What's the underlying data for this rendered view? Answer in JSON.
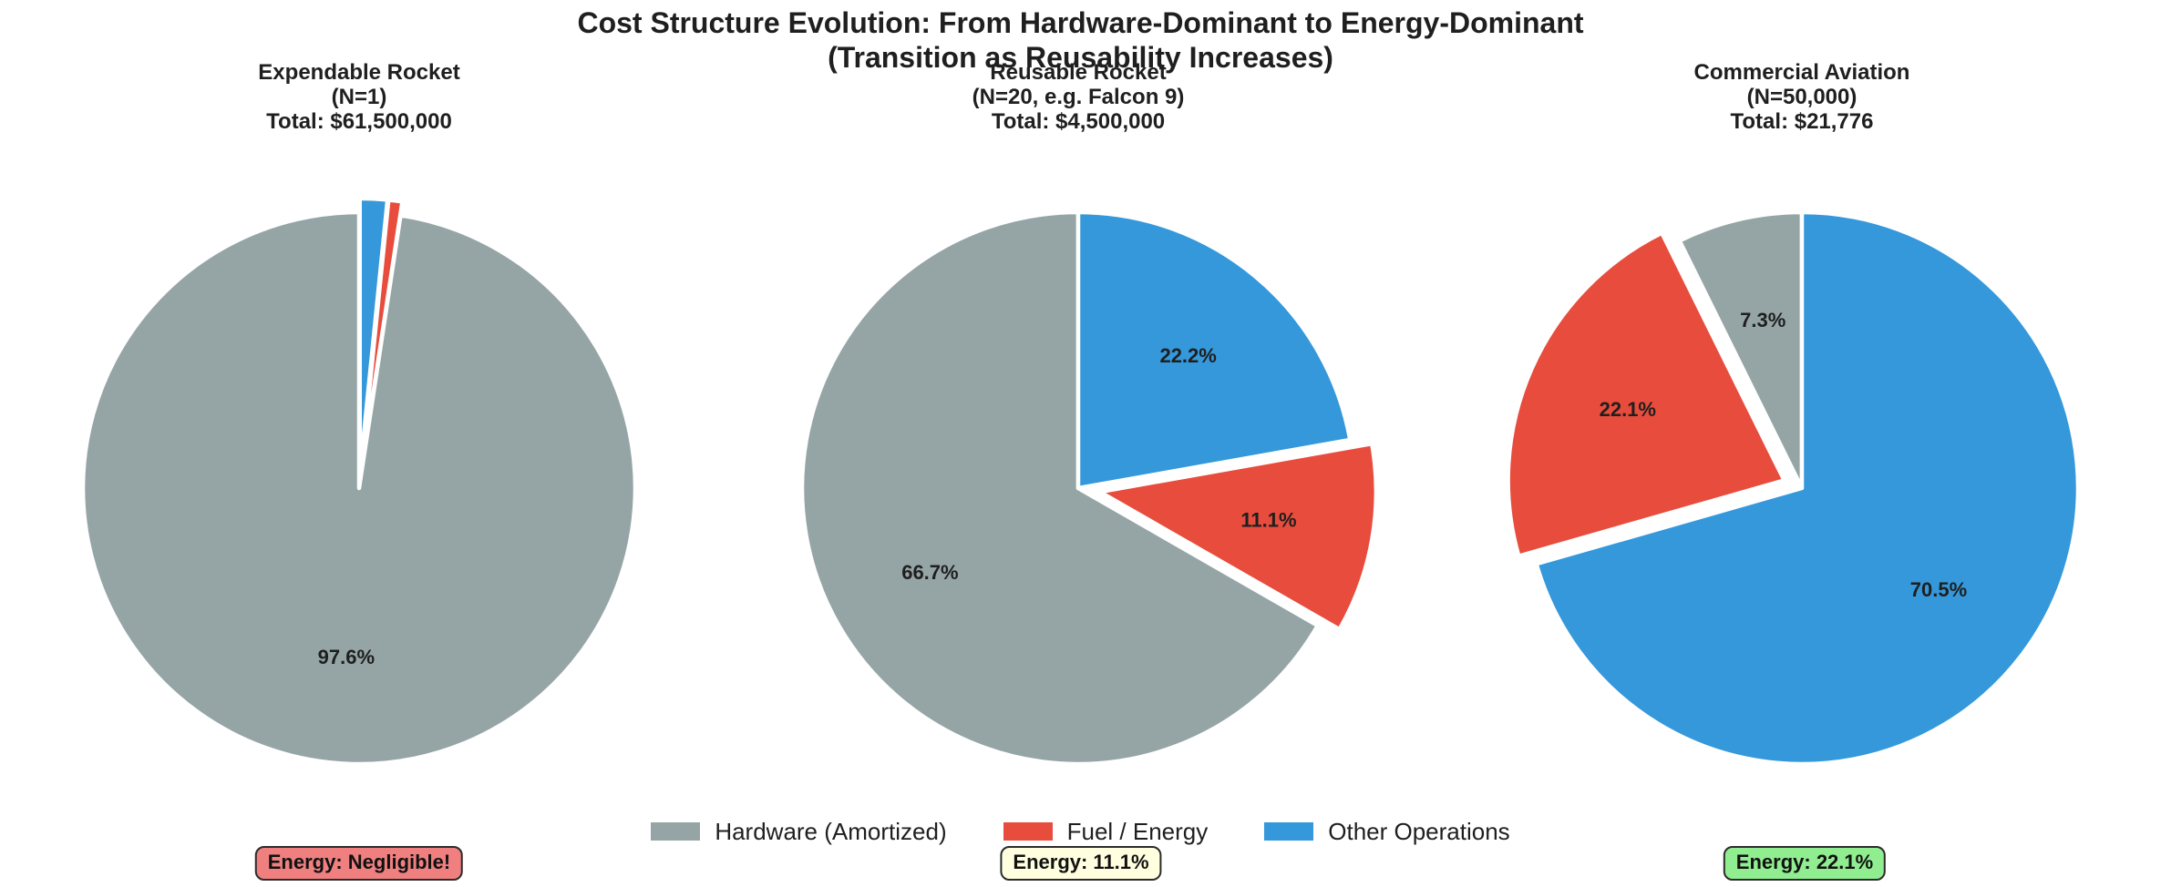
{
  "figure": {
    "title_line1": "Cost Structure Evolution: From Hardware-Dominant to Energy-Dominant",
    "title_line2": "(Transition as Reusability Increases)"
  },
  "colors": {
    "hardware": "#95A5A6",
    "fuel": "#E74C3C",
    "other": "#3498DB",
    "wedge_edge": "#FFFFFF",
    "text": "#1F1F1F",
    "annotation_border": "#2B2B2B"
  },
  "legend": {
    "items": [
      {
        "label": "Hardware (Amortized)",
        "color_key": "hardware"
      },
      {
        "label": "Fuel / Energy",
        "color_key": "fuel"
      },
      {
        "label": "Other Operations",
        "color_key": "other"
      }
    ]
  },
  "chart_data": [
    {
      "type": "pie",
      "title_lines": [
        "Expendable Rocket",
        "(N=1)",
        "Total: $61,500,000"
      ],
      "categories": [
        "Hardware (Amortized)",
        "Fuel / Energy",
        "Other Operations"
      ],
      "color_keys": [
        "hardware",
        "fuel",
        "other"
      ],
      "values_pct": [
        97.6,
        0.8,
        1.6
      ],
      "slice_labels": [
        "97.6%",
        null,
        null
      ],
      "explode": [
        0,
        0.05,
        0.05
      ],
      "start_angle": 90,
      "direction": "counterclockwise",
      "annotation": {
        "label": "Energy: Negligible!",
        "bg": "#F08080"
      }
    },
    {
      "type": "pie",
      "title_lines": [
        "Reusable Rocket",
        "(N=20, e.g. Falcon 9)",
        "Total: $4,500,000"
      ],
      "categories": [
        "Hardware (Amortized)",
        "Fuel / Energy",
        "Other Operations"
      ],
      "color_keys": [
        "hardware",
        "fuel",
        "other"
      ],
      "values_pct": [
        66.7,
        11.1,
        22.2
      ],
      "slice_labels": [
        "66.7%",
        "11.1%",
        "22.2%"
      ],
      "explode": [
        0,
        0.08,
        0
      ],
      "start_angle": 90,
      "direction": "counterclockwise",
      "annotation": {
        "label": "Energy: 11.1%",
        "bg": "#FFFFE0"
      }
    },
    {
      "type": "pie",
      "title_lines": [
        "Commercial Aviation",
        "(N=50,000)",
        "Total: $21,776"
      ],
      "categories": [
        "Hardware (Amortized)",
        "Fuel / Energy",
        "Other Operations"
      ],
      "color_keys": [
        "hardware",
        "fuel",
        "other"
      ],
      "values_pct": [
        7.3,
        22.1,
        70.5
      ],
      "slice_labels": [
        "7.3%",
        "22.1%",
        "70.5%"
      ],
      "explode": [
        0,
        0.07,
        0
      ],
      "start_angle": 90,
      "direction": "counterclockwise",
      "annotation": {
        "label": "Energy: 22.1%",
        "bg": "#90EE90"
      }
    }
  ]
}
